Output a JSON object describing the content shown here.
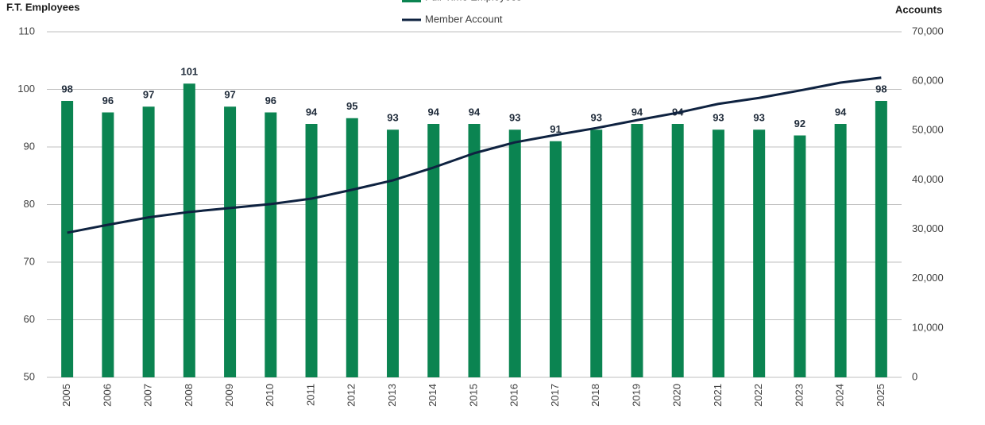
{
  "chart_data": {
    "type": "bar_line",
    "y_label": "F.T. Employees",
    "y2_label": "Accounts",
    "categories": [
      "2005",
      "2006",
      "2007",
      "2008",
      "2009",
      "2010",
      "2011",
      "2012",
      "2013",
      "2014",
      "2015",
      "2016",
      "2017",
      "2018",
      "2019",
      "2020",
      "2021",
      "2022",
      "2023",
      "2024",
      "2025"
    ],
    "series": [
      {
        "name": "Full-Time Employees",
        "color": "#0b8451",
        "type": "bar",
        "values": [
          98,
          96,
          97,
          101,
          97,
          96,
          94,
          95,
          93,
          94,
          94,
          93,
          91,
          93,
          94,
          94,
          93,
          93,
          92,
          94,
          98
        ]
      },
      {
        "name": "Member Account",
        "color": "#0e2240",
        "type": "line",
        "axis": "y2",
        "values": [
          29300,
          30900,
          32400,
          33500,
          34300,
          35100,
          36200,
          38000,
          39900,
          42500,
          45400,
          47600,
          49100,
          50500,
          52100,
          53600,
          55400,
          56600,
          58100,
          59700,
          60700
        ]
      }
    ],
    "ylim": [
      50,
      110
    ],
    "yticks": [
      50,
      60,
      70,
      80,
      90,
      100,
      110
    ],
    "y2lim": [
      0,
      70000
    ],
    "y2ticks": [
      0,
      {
        "value": 10000,
        "label": "10,000"
      },
      {
        "value": 20000,
        "label": "20,000"
      },
      {
        "value": 30000,
        "label": "30,000"
      },
      {
        "value": 40000,
        "label": "40,000"
      },
      {
        "value": 50000,
        "label": "50,000"
      },
      {
        "value": 60000,
        "label": "60,000"
      },
      {
        "value": 70000,
        "label": "70,000"
      }
    ],
    "grid": true
  }
}
